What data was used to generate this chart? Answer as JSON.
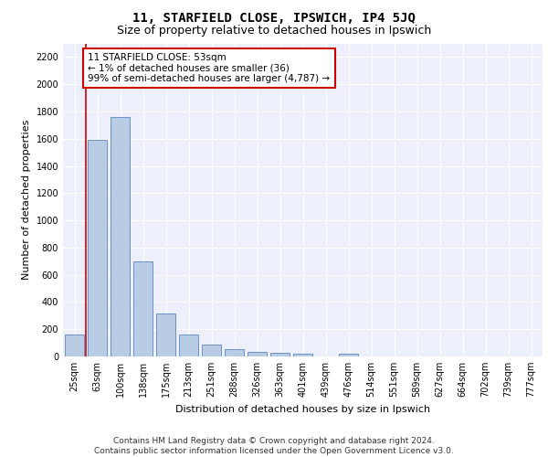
{
  "title": "11, STARFIELD CLOSE, IPSWICH, IP4 5JQ",
  "subtitle": "Size of property relative to detached houses in Ipswich",
  "xlabel": "Distribution of detached houses by size in Ipswich",
  "ylabel": "Number of detached properties",
  "categories": [
    "25sqm",
    "63sqm",
    "100sqm",
    "138sqm",
    "175sqm",
    "213sqm",
    "251sqm",
    "288sqm",
    "326sqm",
    "363sqm",
    "401sqm",
    "439sqm",
    "476sqm",
    "514sqm",
    "551sqm",
    "589sqm",
    "627sqm",
    "664sqm",
    "702sqm",
    "739sqm",
    "777sqm"
  ],
  "values": [
    160,
    1590,
    1760,
    700,
    315,
    160,
    90,
    55,
    35,
    25,
    22,
    0,
    20,
    0,
    0,
    0,
    0,
    0,
    0,
    0,
    0
  ],
  "bar_color": "#b8cce4",
  "bar_edge_color": "#5a86c4",
  "highlight_line_color": "#cc0000",
  "annotation_text": "11 STARFIELD CLOSE: 53sqm\n← 1% of detached houses are smaller (36)\n99% of semi-detached houses are larger (4,787) →",
  "annotation_box_color": "#ffffff",
  "annotation_box_edge_color": "#cc0000",
  "ylim": [
    0,
    2300
  ],
  "yticks": [
    0,
    200,
    400,
    600,
    800,
    1000,
    1200,
    1400,
    1600,
    1800,
    2000,
    2200
  ],
  "background_color": "#edf0fa",
  "grid_color": "#ffffff",
  "footer_line1": "Contains HM Land Registry data © Crown copyright and database right 2024.",
  "footer_line2": "Contains public sector information licensed under the Open Government Licence v3.0.",
  "title_fontsize": 10,
  "subtitle_fontsize": 9,
  "axis_label_fontsize": 8,
  "tick_fontsize": 7,
  "annotation_fontsize": 7.5,
  "footer_fontsize": 6.5
}
